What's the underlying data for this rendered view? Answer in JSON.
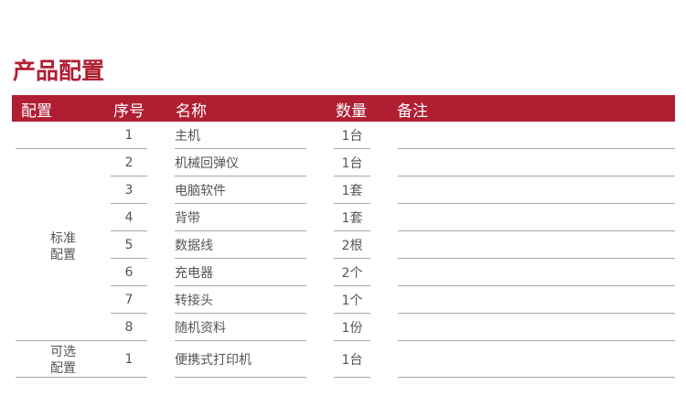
{
  "title": "产品配置",
  "header": {
    "config": "配置",
    "seq": "序号",
    "name": "名称",
    "qty": "数量",
    "remark": "备注"
  },
  "groups": {
    "standard": [
      "标准",
      "配置"
    ],
    "optional": [
      "可选",
      "配置"
    ]
  },
  "rows": [
    {
      "seq": "1",
      "name": "主机",
      "qty": "1台"
    },
    {
      "seq": "2",
      "name": "机械回弹仪",
      "qty": "1台"
    },
    {
      "seq": "3",
      "name": "电脑软件",
      "qty": "1套"
    },
    {
      "seq": "4",
      "name": "背带",
      "qty": "1套"
    },
    {
      "seq": "5",
      "name": "数据线",
      "qty": "2根"
    },
    {
      "seq": "6",
      "name": "充电器",
      "qty": "2个"
    },
    {
      "seq": "7",
      "name": "转接头",
      "qty": "1个"
    },
    {
      "seq": "8",
      "name": "随机资料",
      "qty": "1份"
    },
    {
      "seq": "1",
      "name": "便携式打印机",
      "qty": "1台"
    }
  ],
  "colors": {
    "accent": "#b01e32"
  }
}
